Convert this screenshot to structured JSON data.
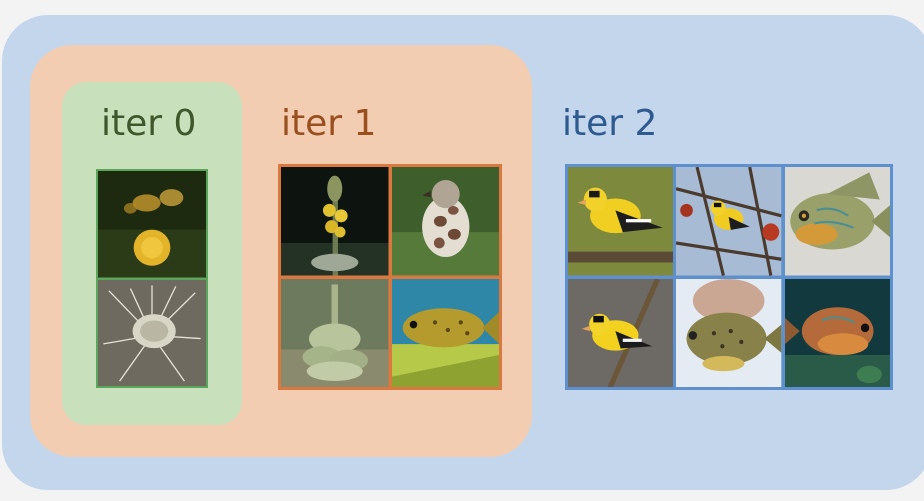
{
  "colors": {
    "page_background": "#f3f3f3",
    "iter2_region": "#c3d6ec",
    "iter1_region": "#f2cdb2",
    "iter0_region": "#c8e0bb",
    "iter0_label": "#40572c",
    "iter1_label": "#9a4f1f",
    "iter2_label": "#2e5a8f",
    "iter0_border": "#5aa65a",
    "iter1_border": "#d9793f",
    "iter2_border": "#5d90cd"
  },
  "groups": [
    {
      "label": "iter 0",
      "images": [
        {
          "subject": "yellow-dandelion-flowers"
        },
        {
          "subject": "dandelion-seed-head"
        }
      ]
    },
    {
      "label": "iter 1",
      "images": [
        {
          "subject": "mullein-flower-spike"
        },
        {
          "subject": "spotted-bird"
        },
        {
          "subject": "mullein-plant"
        },
        {
          "subject": "yellow-green-fish"
        }
      ]
    },
    {
      "label": "iter 2",
      "images": [
        {
          "subject": "goldfinch-on-branch"
        },
        {
          "subject": "goldfinch-in-tree"
        },
        {
          "subject": "sunfish"
        },
        {
          "subject": "goldfinch-perched"
        },
        {
          "subject": "sunfish-in-hand"
        },
        {
          "subject": "sunfish-underwater"
        }
      ]
    }
  ]
}
